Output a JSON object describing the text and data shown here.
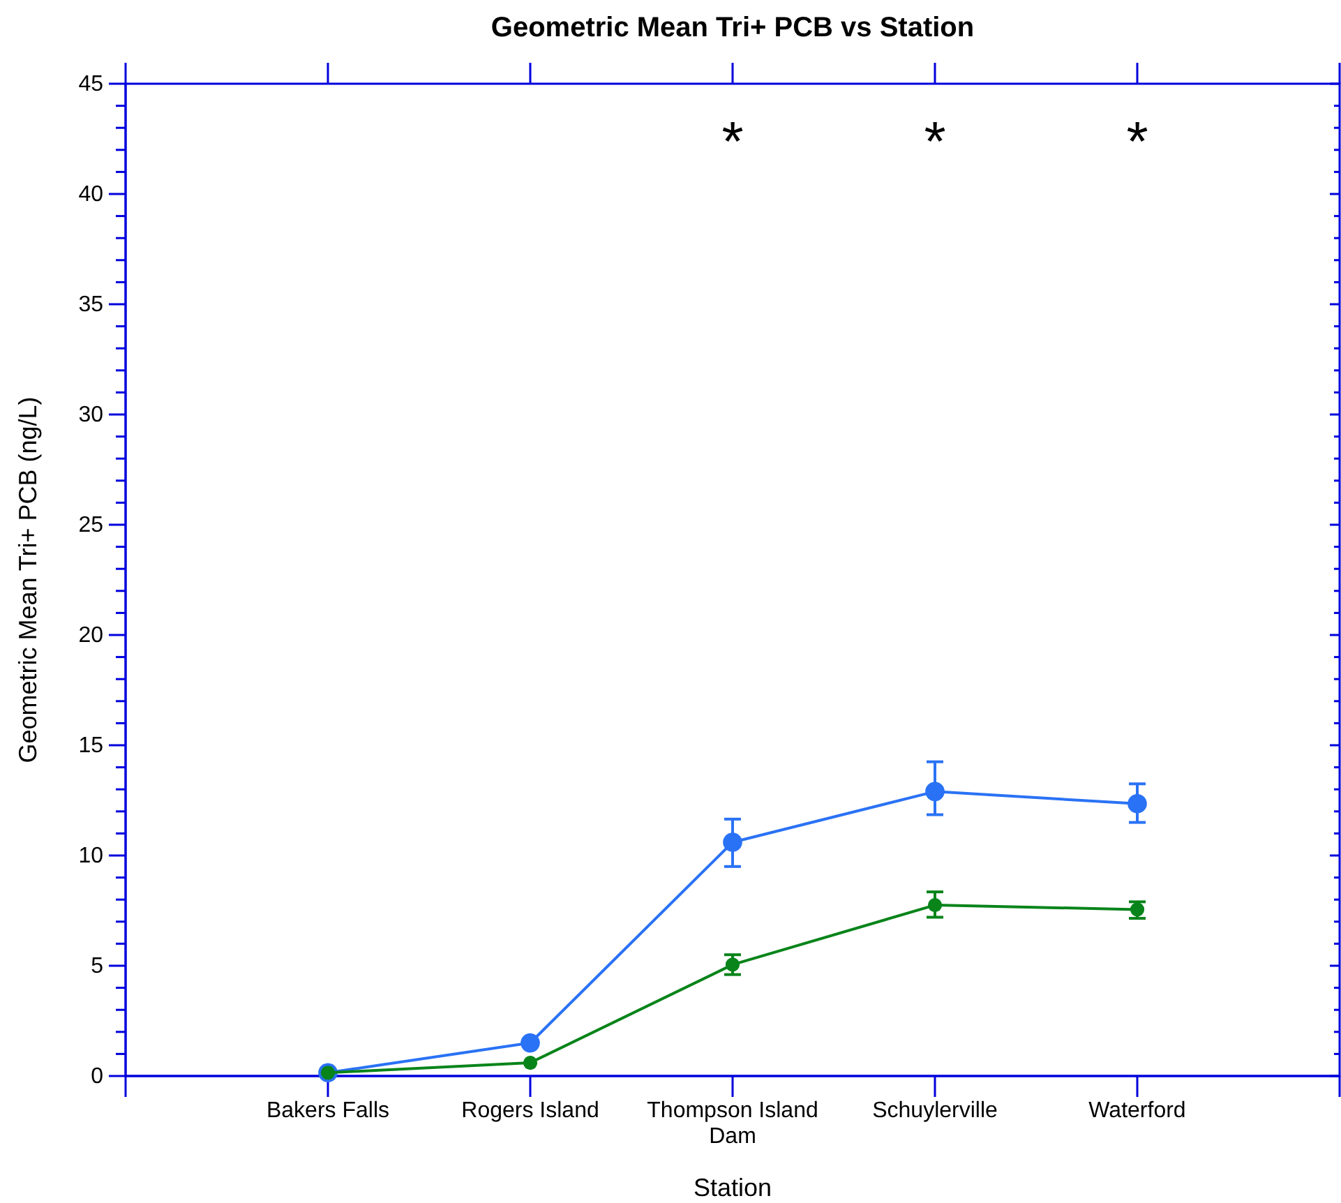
{
  "chart_data": {
    "type": "line",
    "title": "Geometric Mean Tri+ PCB vs Station",
    "xlabel": "Station",
    "ylabel": "Geometric Mean Tri+ PCB (ng/L)",
    "categories": [
      "Bakers Falls",
      "Rogers Island",
      "Thompson Island Dam",
      "Schuylerville",
      "Waterford"
    ],
    "series": [
      {
        "color": "#2a72f5",
        "values": [
          0.15,
          1.5,
          10.6,
          12.9,
          12.35
        ],
        "errors": [
          null,
          null,
          [
            9.5,
            11.65
          ],
          [
            11.85,
            14.25
          ],
          [
            11.5,
            13.25
          ]
        ]
      },
      {
        "color": "#08841a",
        "values": [
          0.15,
          0.6,
          5.05,
          7.75,
          7.55
        ],
        "errors": [
          null,
          null,
          [
            4.6,
            5.5
          ],
          [
            7.2,
            8.35
          ],
          [
            7.15,
            7.9
          ]
        ]
      }
    ],
    "ylim": [
      0,
      45
    ],
    "yticks": [
      0,
      {
        "value": 1,
        "label": null
      },
      {
        "value": 2,
        "label": null
      },
      {
        "value": 3,
        "label": null
      },
      {
        "value": 4,
        "label": null
      },
      5,
      {
        "value": 6,
        "label": null
      },
      {
        "value": 7,
        "label": null
      },
      {
        "value": 8,
        "label": null
      },
      {
        "value": 9,
        "label": null
      },
      10,
      {
        "value": 11,
        "label": null
      },
      {
        "value": 12,
        "label": null
      },
      {
        "value": 13,
        "label": null
      },
      {
        "value": 14,
        "label": null
      },
      15,
      {
        "value": 16,
        "label": null
      },
      {
        "value": 17,
        "label": null
      },
      {
        "value": 18,
        "label": null
      },
      {
        "value": 19,
        "label": null
      },
      20,
      {
        "value": 21,
        "label": null
      },
      {
        "value": 22,
        "label": null
      },
      {
        "value": 23,
        "label": null
      },
      {
        "value": 24,
        "label": null
      },
      25,
      {
        "value": 26,
        "label": null
      },
      {
        "value": 27,
        "label": null
      },
      {
        "value": 28,
        "label": null
      },
      {
        "value": 29,
        "label": null
      },
      30,
      {
        "value": 31,
        "label": null
      },
      {
        "value": 32,
        "label": null
      },
      {
        "value": 33,
        "label": null
      },
      {
        "value": 34,
        "label": null
      },
      35,
      {
        "value": 36,
        "label": null
      },
      {
        "value": 37,
        "label": null
      },
      {
        "value": 38,
        "label": null
      },
      {
        "value": 39,
        "label": null
      },
      40,
      {
        "value": 41,
        "label": null
      },
      {
        "value": 42,
        "label": null
      },
      {
        "value": 43,
        "label": null
      },
      {
        "value": 44,
        "label": null
      },
      45
    ],
    "marker": "circle",
    "line_style": "solid",
    "grid": false,
    "annotations": [
      "*",
      "*",
      "*"
    ]
  }
}
